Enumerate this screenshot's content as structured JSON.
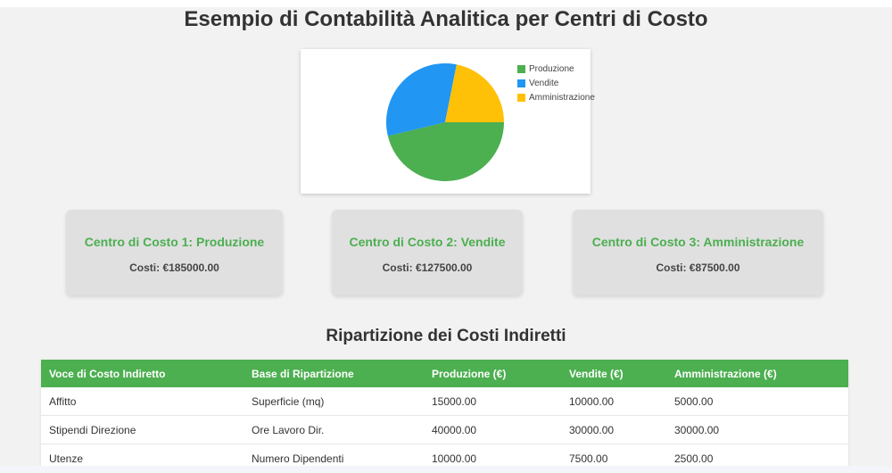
{
  "page": {
    "title": "Esempio di Contabilità Analitica per Centri di Costo"
  },
  "chart_data": {
    "type": "pie",
    "title": "",
    "categories": [
      "Produzione",
      "Vendite",
      "Amministrazione"
    ],
    "values": [
      185000,
      127500,
      87500
    ],
    "colors": [
      "#4caf50",
      "#2196f3",
      "#ffc107"
    ],
    "legend_position": "right"
  },
  "legend": {
    "items": [
      {
        "label": "Produzione",
        "color": "#4caf50"
      },
      {
        "label": "Vendite",
        "color": "#2196f3"
      },
      {
        "label": "Amministrazione",
        "color": "#ffc107"
      }
    ]
  },
  "cards": [
    {
      "title": "Centro di Costo 1: Produzione",
      "cost": "Costi: €185000.00"
    },
    {
      "title": "Centro di Costo 2: Vendite",
      "cost": "Costi: €127500.00"
    },
    {
      "title": "Centro di Costo 3: Amministrazione",
      "cost": "Costi: €87500.00"
    }
  ],
  "indirect": {
    "heading": "Ripartizione dei Costi Indiretti",
    "columns": [
      "Voce di Costo Indiretto",
      "Base di Ripartizione",
      "Produzione (€)",
      "Vendite (€)",
      "Amministrazione (€)"
    ],
    "rows": [
      [
        "Affitto",
        "Superficie (mq)",
        "15000.00",
        "10000.00",
        "5000.00"
      ],
      [
        "Stipendi Direzione",
        "Ore Lavoro Dir.",
        "40000.00",
        "30000.00",
        "30000.00"
      ],
      [
        "Utenze",
        "Numero Dipendenti",
        "10000.00",
        "7500.00",
        "2500.00"
      ]
    ]
  },
  "colors": {
    "accent": "#4caf50",
    "background": "#f2f2f2",
    "card_bg": "#e0e0e0"
  }
}
